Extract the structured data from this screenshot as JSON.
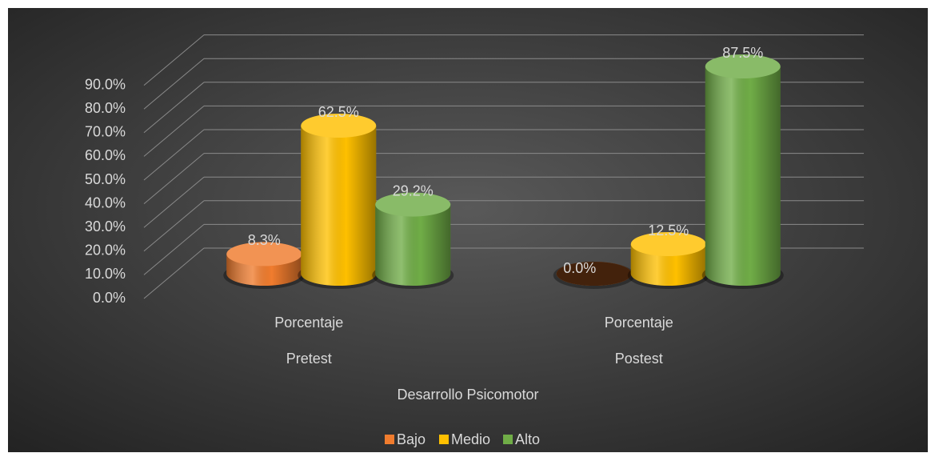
{
  "chart_data": {
    "type": "bar3d",
    "categories": [
      [
        "Porcentaje",
        "Pretest"
      ],
      [
        "Porcentaje",
        "Postest"
      ]
    ],
    "x_label": "Desarrollo Psicomotor",
    "series": [
      {
        "name": "Bajo",
        "color": "#f07c2e",
        "values": [
          8.3,
          0.0
        ],
        "value_labels": [
          "8.3%",
          "0.0%"
        ]
      },
      {
        "name": "Medio",
        "color": "#ffc000",
        "values": [
          62.5,
          12.5
        ],
        "value_labels": [
          "62.5%",
          "12.5%"
        ]
      },
      {
        "name": "Alto",
        "color": "#70ad47",
        "values": [
          29.2,
          87.5
        ],
        "value_labels": [
          "29.2%",
          "87.5%"
        ]
      }
    ],
    "ylim": [
      0,
      90
    ],
    "yticks": [
      {
        "value": 0,
        "label": "0.0%"
      },
      {
        "value": 10,
        "label": "10.0%"
      },
      {
        "value": 20,
        "label": "20.0%"
      },
      {
        "value": 30,
        "label": "30.0%"
      },
      {
        "value": 40,
        "label": "40.0%"
      },
      {
        "value": 50,
        "label": "50.0%"
      },
      {
        "value": 60,
        "label": "60.0%"
      },
      {
        "value": 70,
        "label": "70.0%"
      },
      {
        "value": 80,
        "label": "80.0%"
      },
      {
        "value": 90,
        "label": "90.0%"
      }
    ],
    "grid": true,
    "legend": "bottom"
  }
}
